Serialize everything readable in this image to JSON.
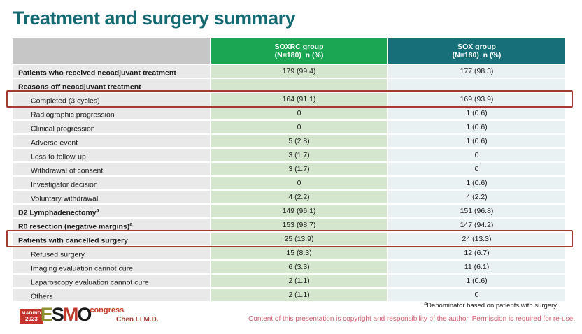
{
  "slide": {
    "title": "Treatment and surgery summary"
  },
  "table": {
    "columns": [
      {
        "label": "",
        "sublabel": ""
      },
      {
        "label": "SOXRC group",
        "sublabel": "(N=180)  n (%)"
      },
      {
        "label": "SOX group",
        "sublabel": "(N=180)  n (%)"
      }
    ],
    "rows": [
      {
        "label": "Patients who received neoadjuvant treatment",
        "bold": true,
        "indent": false,
        "highlight": false,
        "soxrc": "179 (99.4)",
        "sox": "177 (98.3)"
      },
      {
        "label": "Reasons off neoadjuvant treatment",
        "bold": true,
        "indent": false,
        "highlight": false,
        "soxrc": "",
        "sox": ""
      },
      {
        "label": "Completed (3 cycles)",
        "bold": false,
        "indent": true,
        "highlight": true,
        "soxrc": "164 (91.1)",
        "sox": "169 (93.9)"
      },
      {
        "label": "Radiographic progression",
        "bold": false,
        "indent": true,
        "highlight": false,
        "soxrc": "0",
        "sox": "1 (0.6)"
      },
      {
        "label": "Clinical progression",
        "bold": false,
        "indent": true,
        "highlight": false,
        "soxrc": "0",
        "sox": "1 (0.6)"
      },
      {
        "label": "Adverse event",
        "bold": false,
        "indent": true,
        "highlight": false,
        "soxrc": "5 (2.8)",
        "sox": "1 (0.6)"
      },
      {
        "label": "Loss to follow-up",
        "bold": false,
        "indent": true,
        "highlight": false,
        "soxrc": "3 (1.7)",
        "sox": "0"
      },
      {
        "label": "Withdrawal of consent",
        "bold": false,
        "indent": true,
        "highlight": false,
        "soxrc": "3 (1.7)",
        "sox": "0"
      },
      {
        "label": "Investigator decision",
        "bold": false,
        "indent": true,
        "highlight": false,
        "soxrc": "0",
        "sox": "1 (0.6)"
      },
      {
        "label": "Voluntary withdrawal",
        "bold": false,
        "indent": true,
        "highlight": false,
        "soxrc": "4 (2.2)",
        "sox": "4 (2.2)"
      },
      {
        "label": "D2 Lymphadenectomy",
        "sup": "a",
        "bold": true,
        "indent": false,
        "highlight": false,
        "soxrc": "149 (96.1)",
        "sox": "151 (96.8)"
      },
      {
        "label": "R0 resection (negative margins)",
        "sup": "a",
        "bold": true,
        "indent": false,
        "highlight": false,
        "soxrc": "153 (98.7)",
        "sox": "147 (94.2)"
      },
      {
        "label": "Patients with cancelled surgery",
        "bold": true,
        "indent": false,
        "highlight": true,
        "soxrc": "25 (13.9)",
        "sox": "24 (13.3)"
      },
      {
        "label": "Refused surgery",
        "bold": false,
        "indent": true,
        "highlight": false,
        "soxrc": "15 (8.3)",
        "sox": "12 (6.7)"
      },
      {
        "label": "Imaging evaluation cannot cure",
        "bold": false,
        "indent": true,
        "highlight": false,
        "soxrc": "6 (3.3)",
        "sox": "11 (6.1)"
      },
      {
        "label": "Laparoscopy evaluation cannot cure",
        "bold": false,
        "indent": true,
        "highlight": false,
        "soxrc": "2 (1.1)",
        "sox": "1 (0.6)"
      },
      {
        "label": "Others",
        "bold": false,
        "indent": true,
        "highlight": false,
        "soxrc": "2 (1.1)",
        "sox": "0"
      }
    ]
  },
  "footer": {
    "logo": {
      "city": "MADRID",
      "year": "2023",
      "esmo_e": "E",
      "esmo_s": "S",
      "esmo_m": "M",
      "esmo_o": "O",
      "congress": "congress"
    },
    "author": "Chen LI M.D.",
    "footnote_sup": "a",
    "footnote": "Denominator based on patients with surgery",
    "disclaimer": "Content of this presentation is copyright and responsibility of the author. Permission is required for re-use."
  },
  "colors": {
    "title": "#156a72",
    "header_soxrc": "#1aa653",
    "header_sox": "#166f79",
    "label_cell": "#e9e9e9",
    "soxrc_cell": "#d5e6ce",
    "sox_cell": "#eaf1f3",
    "highlight_border": "#a63a30",
    "disclaimer_text": "#cc5f6e"
  }
}
